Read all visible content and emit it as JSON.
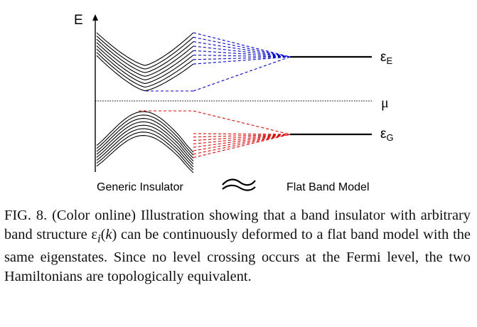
{
  "figure": {
    "axis_label": "E",
    "fermi_label": "μ",
    "excited_label_base": "ε",
    "excited_label_sub": "E",
    "ground_label_base": "ε",
    "ground_label_sub": "G",
    "generic_label": "Generic Insulator",
    "flat_label": "Flat Band Model",
    "colors": {
      "bands": "#000000",
      "upper_dash": "#0000ee",
      "lower_dash": "#ee0000",
      "fermi": "#000000"
    },
    "upper_band_count": 8,
    "lower_band_count": 8
  },
  "caption": {
    "prefix": "FIG. 8. (Color online) Illustration showing that a band insulator with arbitrary band structure ",
    "eps": "ε",
    "sub": "i",
    "k_open": "(",
    "k": "k",
    "k_close": ")",
    "suffix": " can be continuously deformed to a flat band model with the same eigenstates. Since no level crossing occurs at the Fermi level, the two Hamiltonians are topologically equivalent."
  }
}
